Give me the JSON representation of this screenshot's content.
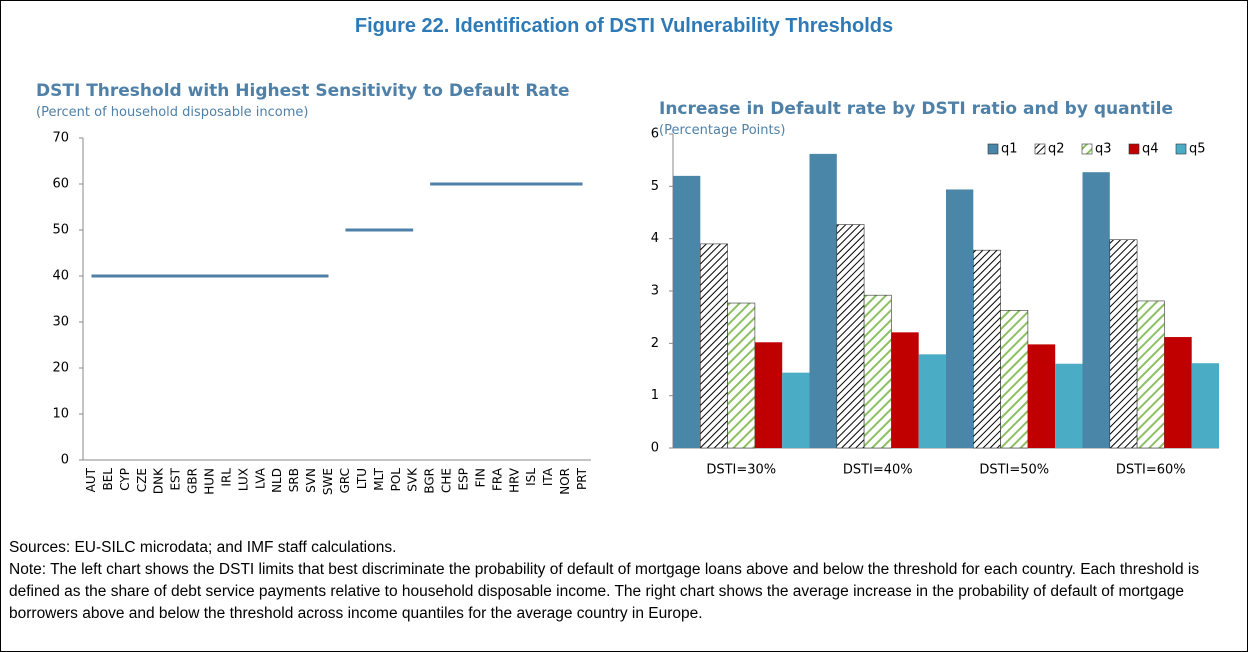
{
  "figure_title": "Figure 22. Identification of DSTI Vulnerability Thresholds",
  "sources": "Sources: EU-SILC microdata; and IMF staff calculations.",
  "note": "Note: The left chart shows the DSTI limits that best discriminate the probability of default of mortgage loans above and below the threshold for each country. Each threshold is defined as the share of debt service payments relative to household disposable income. The right chart shows the average increase in the probability of default of mortgage borrowers above and below the threshold across income quantiles for the average country in Europe.",
  "chart_data": [
    {
      "type": "line",
      "title": "DSTI Threshold with Highest Sensitivity to Default Rate",
      "subtitle": "(Percent of household disposable income)",
      "categories": [
        "AUT",
        "BEL",
        "CYP",
        "CZE",
        "DNK",
        "EST",
        "GBR",
        "HUN",
        "IRL",
        "LUX",
        "LVA",
        "NLD",
        "SRB",
        "SVN",
        "SWE",
        "GRC",
        "LTU",
        "MLT",
        "POL",
        "SVK",
        "BGR",
        "CHE",
        "ESP",
        "FIN",
        "FRA",
        "HRV",
        "ISL",
        "ITA",
        "NOR",
        "PRT"
      ],
      "series": [
        {
          "color": "#4f81a8",
          "values": [
            40,
            40,
            40,
            40,
            40,
            40,
            40,
            40,
            40,
            40,
            40,
            40,
            40,
            40,
            40,
            null,
            null,
            null,
            null,
            null,
            null,
            null,
            null,
            null,
            null,
            null,
            null,
            null,
            null,
            null
          ]
        },
        {
          "color": "#4f81a8",
          "values": [
            null,
            null,
            null,
            null,
            null,
            null,
            null,
            null,
            null,
            null,
            null,
            null,
            null,
            null,
            null,
            50,
            50,
            50,
            50,
            50,
            null,
            null,
            null,
            null,
            null,
            null,
            null,
            null,
            null,
            null
          ]
        },
        {
          "color": "#4f81a8",
          "values": [
            null,
            null,
            null,
            null,
            null,
            null,
            null,
            null,
            null,
            null,
            null,
            null,
            null,
            null,
            null,
            null,
            null,
            null,
            null,
            null,
            60,
            60,
            60,
            60,
            60,
            60,
            60,
            60,
            60,
            60
          ]
        }
      ],
      "ylim": [
        0,
        70
      ],
      "yticks": [
        0,
        10,
        20,
        30,
        40,
        50,
        60,
        70
      ],
      "grid": false
    },
    {
      "type": "bar",
      "title": "Increase in Default rate by DSTI ratio and by quantile",
      "subtitle": "(Percentage Points)",
      "categories": [
        "DSTI=30%",
        "DSTI=40%",
        "DSTI=50%",
        "DSTI=60%"
      ],
      "series": [
        {
          "name": "q1",
          "color": "#4a86a8",
          "values": [
            5.2,
            5.62,
            4.94,
            5.27
          ]
        },
        {
          "name": "q2",
          "color": "#000000",
          "pattern": "hatch",
          "values": [
            3.9,
            4.27,
            3.78,
            3.98
          ]
        },
        {
          "name": "q3",
          "color": "#8cc063",
          "pattern": "hatch",
          "values": [
            2.77,
            2.92,
            2.63,
            2.81
          ]
        },
        {
          "name": "q4",
          "color": "#c00000",
          "values": [
            2.02,
            2.21,
            1.98,
            2.12
          ]
        },
        {
          "name": "q5",
          "color": "#4bacc6",
          "values": [
            1.44,
            1.79,
            1.61,
            1.62
          ]
        }
      ],
      "ylim": [
        0,
        6
      ],
      "yticks": [
        0,
        1,
        2,
        3,
        4,
        5,
        6
      ],
      "grid": false,
      "legend": "upper right"
    }
  ]
}
